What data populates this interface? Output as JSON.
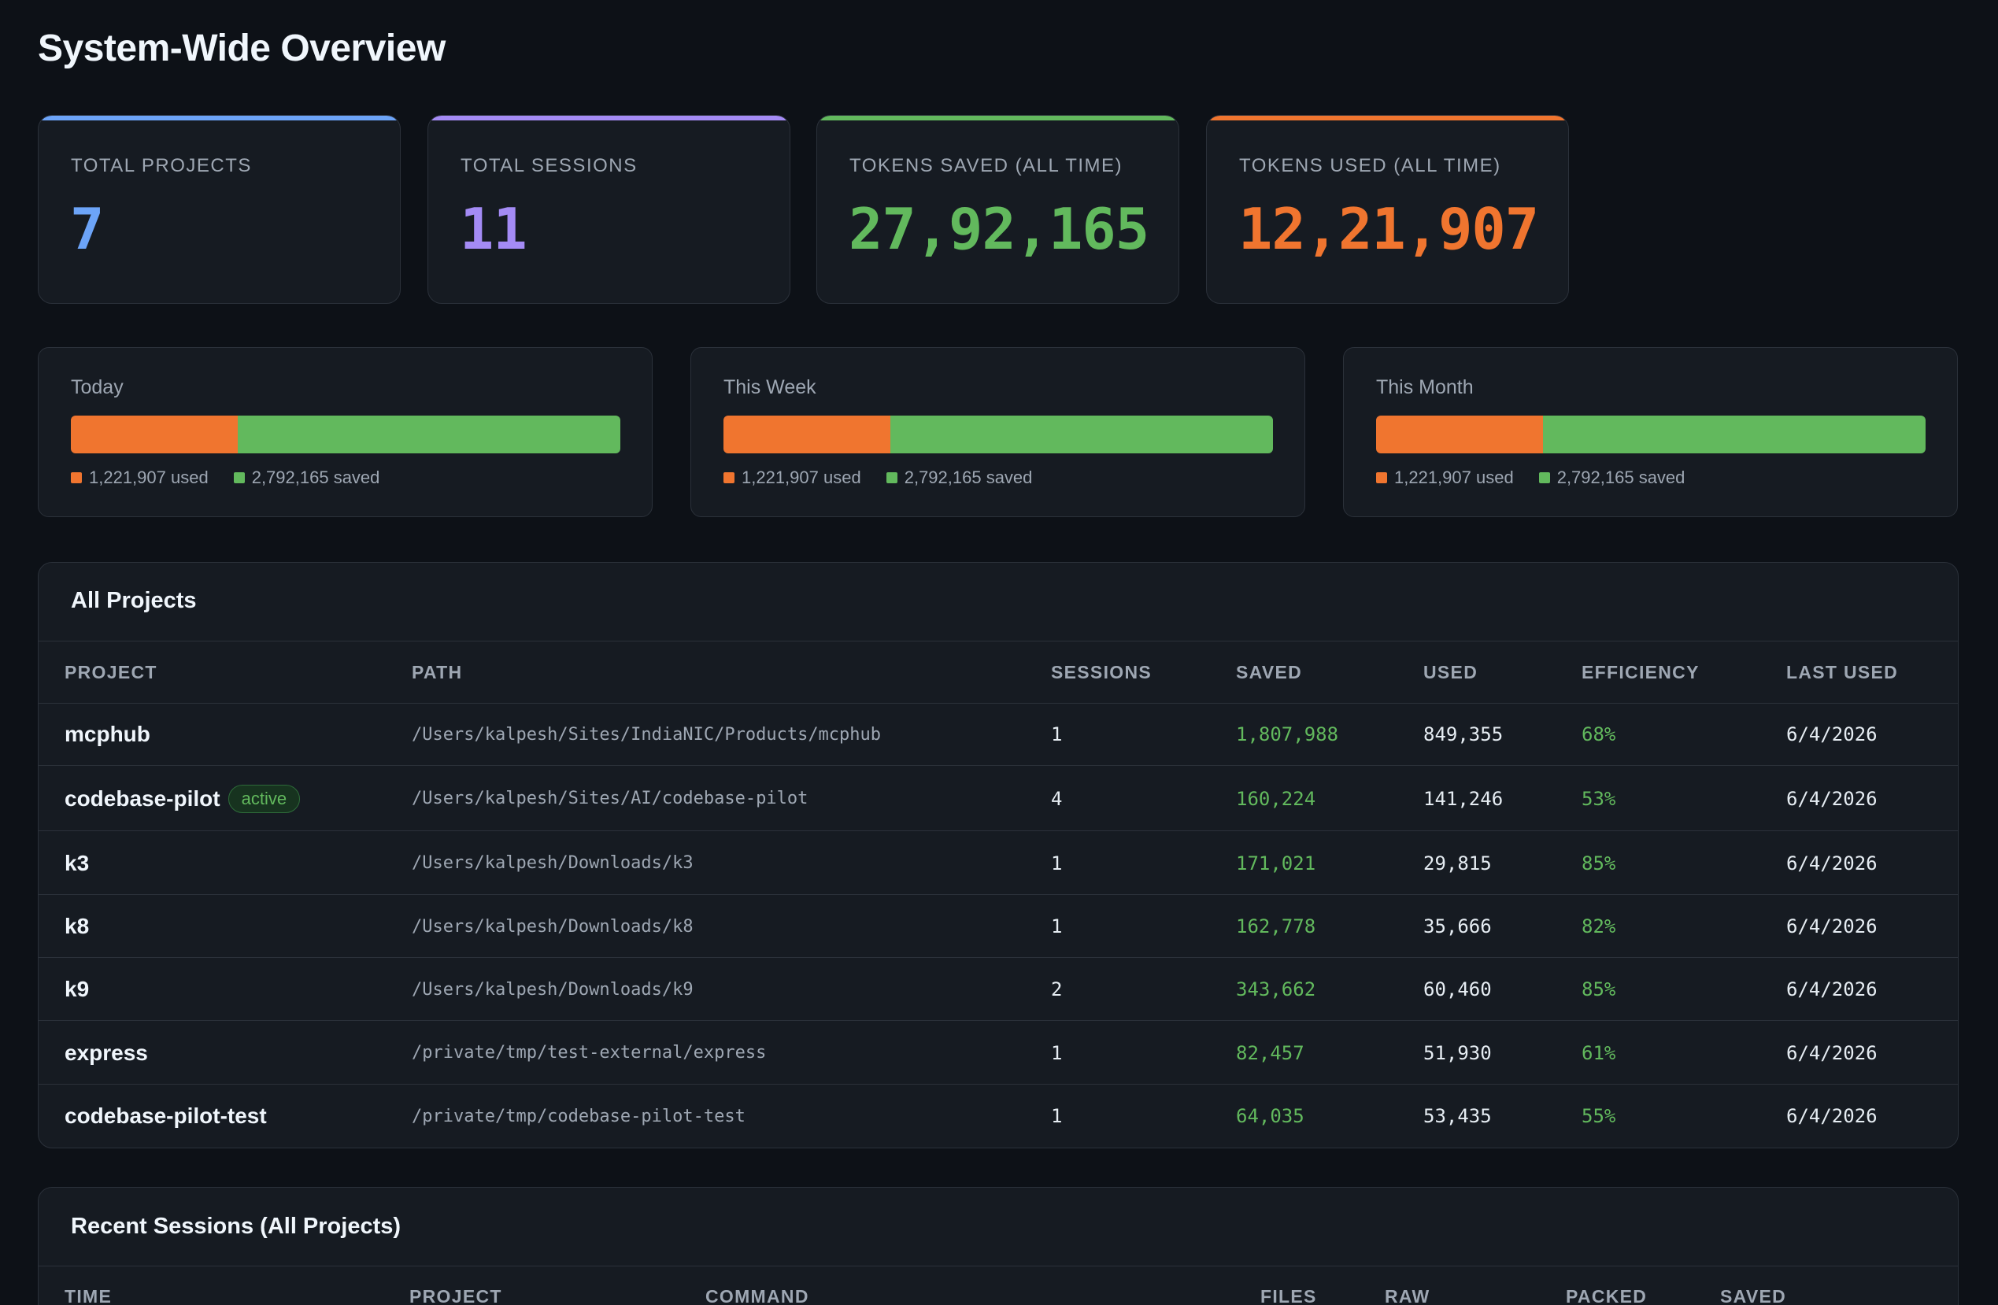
{
  "page_title": "System-Wide Overview",
  "stats": [
    {
      "label": "TOTAL PROJECTS",
      "value": "7",
      "color": "#6ca4f8"
    },
    {
      "label": "TOTAL SESSIONS",
      "value": "11",
      "color": "#a48bf5"
    },
    {
      "label": "TOKENS SAVED (ALL TIME)",
      "value": "27,92,165",
      "color": "#62b95d"
    },
    {
      "label": "TOKENS USED (ALL TIME)",
      "value": "12,21,907",
      "color": "#f0752f"
    }
  ],
  "ranges": [
    {
      "label": "Today",
      "used_text": "1,221,907 used",
      "saved_text": "2,792,165 saved",
      "used_fraction": 0.304
    },
    {
      "label": "This Week",
      "used_text": "1,221,907 used",
      "saved_text": "2,792,165 saved",
      "used_fraction": 0.304
    },
    {
      "label": "This Month",
      "used_text": "1,221,907 used",
      "saved_text": "2,792,165 saved",
      "used_fraction": 0.304
    }
  ],
  "colors": {
    "used": "#f0752f",
    "saved": "#62b95d"
  },
  "all_projects": {
    "title": "All Projects",
    "columns": [
      "PROJECT",
      "PATH",
      "SESSIONS",
      "SAVED",
      "USED",
      "EFFICIENCY",
      "LAST USED"
    ],
    "rows": [
      {
        "project": "mcphub",
        "badge": "",
        "path": "/Users/kalpesh/Sites/IndiaNIC/Products/mcphub",
        "sessions": "1",
        "saved": "1,807,988",
        "used": "849,355",
        "efficiency": "68%",
        "last_used": "6/4/2026"
      },
      {
        "project": "codebase-pilot",
        "badge": "active",
        "path": "/Users/kalpesh/Sites/AI/codebase-pilot",
        "sessions": "4",
        "saved": "160,224",
        "used": "141,246",
        "efficiency": "53%",
        "last_used": "6/4/2026"
      },
      {
        "project": "k3",
        "badge": "",
        "path": "/Users/kalpesh/Downloads/k3",
        "sessions": "1",
        "saved": "171,021",
        "used": "29,815",
        "efficiency": "85%",
        "last_used": "6/4/2026"
      },
      {
        "project": "k8",
        "badge": "",
        "path": "/Users/kalpesh/Downloads/k8",
        "sessions": "1",
        "saved": "162,778",
        "used": "35,666",
        "efficiency": "82%",
        "last_used": "6/4/2026"
      },
      {
        "project": "k9",
        "badge": "",
        "path": "/Users/kalpesh/Downloads/k9",
        "sessions": "2",
        "saved": "343,662",
        "used": "60,460",
        "efficiency": "85%",
        "last_used": "6/4/2026"
      },
      {
        "project": "express",
        "badge": "",
        "path": "/private/tmp/test-external/express",
        "sessions": "1",
        "saved": "82,457",
        "used": "51,930",
        "efficiency": "61%",
        "last_used": "6/4/2026"
      },
      {
        "project": "codebase-pilot-test",
        "badge": "",
        "path": "/private/tmp/codebase-pilot-test",
        "sessions": "1",
        "saved": "64,035",
        "used": "53,435",
        "efficiency": "55%",
        "last_used": "6/4/2026"
      }
    ]
  },
  "recent_sessions": {
    "title": "Recent Sessions (All Projects)",
    "columns": [
      "TIME",
      "PROJECT",
      "COMMAND",
      "FILES",
      "RAW",
      "PACKED",
      "SAVED"
    ]
  }
}
